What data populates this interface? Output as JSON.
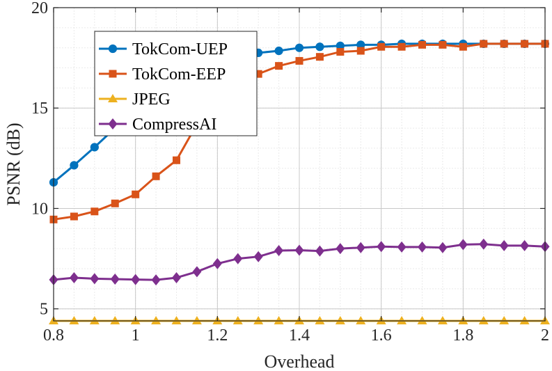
{
  "chart_data": {
    "type": "line",
    "xlabel": "Overhead",
    "ylabel": "PSNR (dB)",
    "xlim": [
      0.8,
      2.0
    ],
    "ylim": [
      4.4,
      20
    ],
    "xticks": [
      0.8,
      1.0,
      1.2,
      1.4,
      1.6,
      1.8,
      2.0
    ],
    "xtick_labels": [
      "0.8",
      "1",
      "1.2",
      "1.4",
      "1.6",
      "1.8",
      "2"
    ],
    "yticks": [
      5,
      10,
      15,
      20
    ],
    "ytick_labels": [
      "5",
      "10",
      "15",
      "20"
    ],
    "grid": true,
    "minor_grid": true,
    "legend_position": "top-left",
    "x": [
      0.8,
      0.85,
      0.9,
      0.95,
      1.0,
      1.05,
      1.1,
      1.15,
      1.2,
      1.25,
      1.3,
      1.35,
      1.4,
      1.45,
      1.5,
      1.55,
      1.6,
      1.65,
      1.7,
      1.75,
      1.8,
      1.85,
      1.9,
      1.95,
      2.0
    ],
    "series": [
      {
        "name": "TokCom-UEP",
        "color": "#0072BD",
        "marker": "circle",
        "values": [
          11.3,
          12.15,
          13.05,
          14.0,
          14.8,
          15.5,
          16.1,
          16.6,
          17.0,
          17.4,
          17.75,
          17.85,
          18.0,
          18.05,
          18.1,
          18.15,
          18.15,
          18.2,
          18.2,
          18.2,
          18.2,
          18.2,
          18.2,
          18.2,
          18.2
        ]
      },
      {
        "name": "TokCom-EEP",
        "color": "#D95319",
        "marker": "square",
        "values": [
          9.45,
          9.6,
          9.85,
          10.25,
          10.7,
          11.6,
          12.4,
          14.2,
          15.4,
          16.1,
          16.7,
          17.1,
          17.35,
          17.55,
          17.8,
          17.85,
          18.05,
          18.05,
          18.15,
          18.15,
          18.05,
          18.2,
          18.2,
          18.2,
          18.2
        ]
      },
      {
        "name": "JPEG",
        "color": "#EDB120",
        "marker": "triangle",
        "values": [
          4.4,
          4.4,
          4.4,
          4.4,
          4.4,
          4.4,
          4.4,
          4.4,
          4.4,
          4.4,
          4.4,
          4.4,
          4.4,
          4.4,
          4.4,
          4.4,
          4.4,
          4.4,
          4.4,
          4.4,
          4.4,
          4.4,
          4.4,
          4.4,
          4.4
        ]
      },
      {
        "name": "CompressAI",
        "color": "#7E2F8E",
        "marker": "diamond",
        "values": [
          6.45,
          6.55,
          6.5,
          6.48,
          6.46,
          6.44,
          6.55,
          6.85,
          7.25,
          7.5,
          7.6,
          7.9,
          7.92,
          7.88,
          8.0,
          8.05,
          8.1,
          8.08,
          8.08,
          8.05,
          8.2,
          8.22,
          8.15,
          8.15,
          8.1
        ]
      }
    ]
  }
}
